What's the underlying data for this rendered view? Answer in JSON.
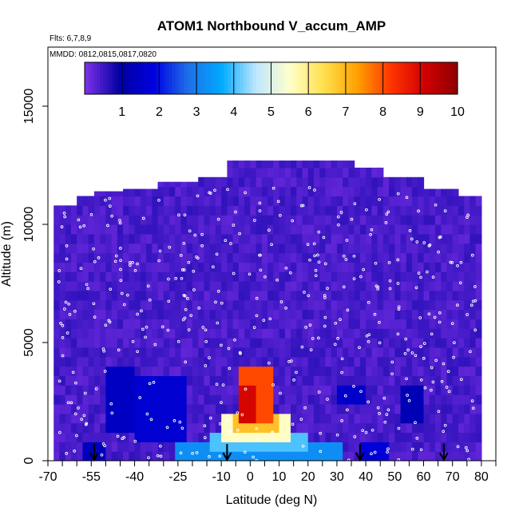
{
  "chart_data": {
    "type": "heatmap",
    "title": "ATOM1 Northbound V_accum_AMP",
    "subtitle_flights": "Flts: 6,7,8,9",
    "subtitle_dates": "MMDD: 0812,0815,0817,0820",
    "xlabel": "Latitude (deg N)",
    "ylabel": "Altitude (m)",
    "xlim": [
      -70,
      85
    ],
    "ylim": [
      0,
      17500
    ],
    "x_ticks": [
      "-70",
      "-55",
      "-40",
      "-25",
      "-10",
      "0",
      "10",
      "20",
      "30",
      "40",
      "50",
      "60",
      "70",
      "80"
    ],
    "y_ticks": [
      "0",
      "5000",
      "10000",
      "15000"
    ],
    "colorbar": {
      "range": [
        0,
        10
      ],
      "ticks": [
        "1",
        "2",
        "3",
        "4",
        "5",
        "6",
        "7",
        "8",
        "9",
        "10"
      ],
      "colors": [
        "#7a2fe6",
        "#0000a0",
        "#0000e0",
        "#1e6fe8",
        "#00aaff",
        "#bde6ff",
        "#ffffcc",
        "#ffe04d",
        "#ffa000",
        "#ff3300",
        "#d00000",
        "#8b0000"
      ]
    },
    "background_value": 0.2,
    "coverage_top_m": [
      {
        "x": -68,
        "top": 10800
      },
      {
        "x": -62,
        "top": 11200
      },
      {
        "x": -55,
        "top": 11400
      },
      {
        "x": -45,
        "top": 11500
      },
      {
        "x": -34,
        "top": 11800
      },
      {
        "x": -20,
        "top": 12000
      },
      {
        "x": -10,
        "top": 12700
      },
      {
        "x": 25,
        "top": 12700
      },
      {
        "x": 34,
        "top": 12400
      },
      {
        "x": 45,
        "top": 12000
      },
      {
        "x": 58,
        "top": 11500
      },
      {
        "x": 70,
        "top": 11200
      },
      {
        "x": 78,
        "top": 10500
      }
    ],
    "enhanced_cells": [
      {
        "lat": [
          -3,
          7
        ],
        "alt": [
          1900,
          3800
        ],
        "value": 8.0
      },
      {
        "lat": [
          -4,
          1
        ],
        "alt": [
          1700,
          3000
        ],
        "value": 9.0
      },
      {
        "lat": [
          -6,
          9
        ],
        "alt": [
          1300,
          2000
        ],
        "value": 6.8
      },
      {
        "lat": [
          -9,
          14
        ],
        "alt": [
          1000,
          1800
        ],
        "value": 5.5
      },
      {
        "lat": [
          -14,
          20
        ],
        "alt": [
          600,
          1200
        ],
        "value": 4.0
      },
      {
        "lat": [
          -25,
          32
        ],
        "alt": [
          0,
          700
        ],
        "value": 3.2
      },
      {
        "lat": [
          -40,
          -22
        ],
        "alt": [
          900,
          3600
        ],
        "value": 1.6
      },
      {
        "lat": [
          -50,
          -40
        ],
        "alt": [
          1500,
          4000
        ],
        "value": 1.4
      },
      {
        "lat": [
          30,
          40
        ],
        "alt": [
          2500,
          3200
        ],
        "value": 1.5
      },
      {
        "lat": [
          38,
          48
        ],
        "alt": [
          0,
          600
        ],
        "value": 1.7
      },
      {
        "lat": [
          -57,
          -50
        ],
        "alt": [
          100,
          700
        ],
        "value": 1.3
      },
      {
        "lat": [
          52,
          60
        ],
        "alt": [
          1800,
          3000
        ],
        "value": 1.2
      }
    ],
    "flight_track_lat": [
      -68,
      -60,
      -55,
      -48,
      -42,
      -35,
      -28,
      -20,
      -10,
      0,
      10,
      20,
      30,
      40,
      50,
      60,
      70,
      78
    ],
    "arrow_latitudes": [
      -54,
      -8,
      38,
      67
    ]
  }
}
